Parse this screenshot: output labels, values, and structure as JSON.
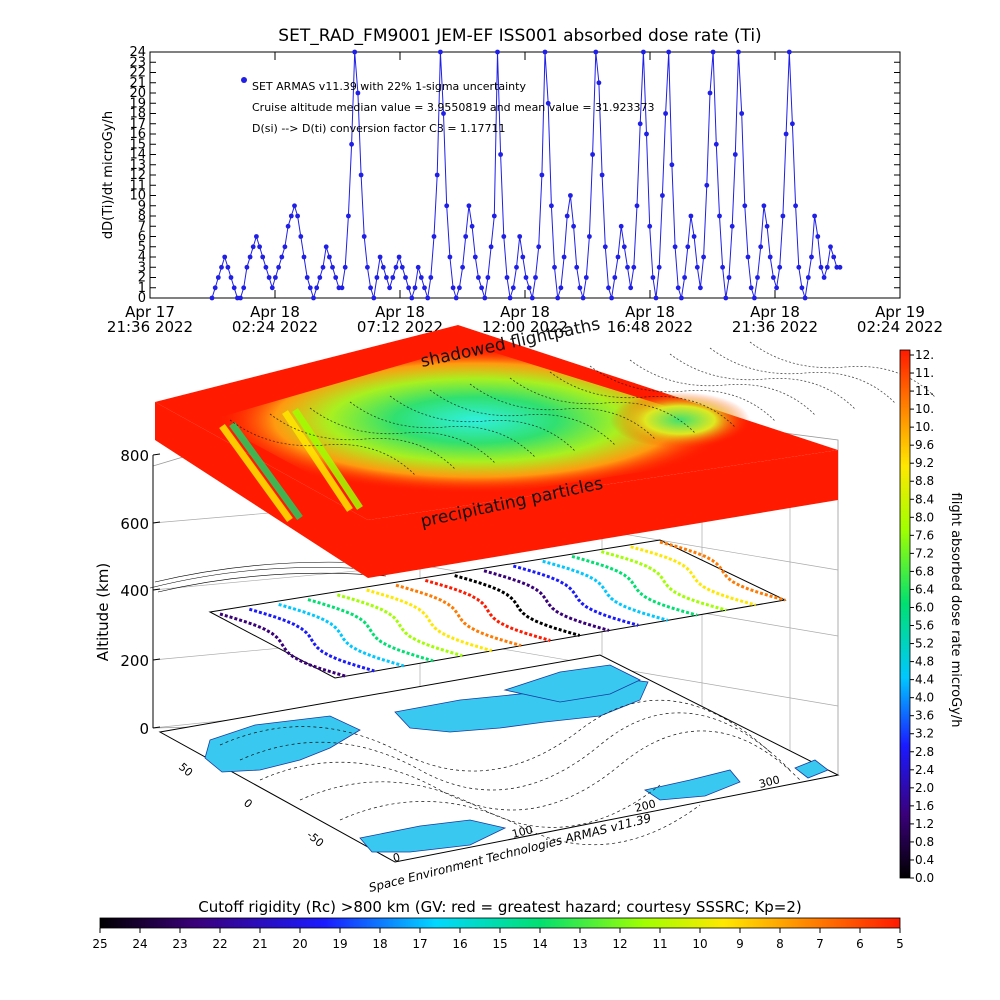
{
  "chart_data": [
    {
      "type": "line",
      "title": "SET_RAD_FM9001  JEM-EF ISS001 absorbed dose rate (Ti)",
      "ylabel": "dD(Ti)/dt microGy/h",
      "ylim": [
        0,
        24
      ],
      "y_ticks": [
        "0",
        "1",
        "2",
        "3",
        "4",
        "5",
        "6",
        "7",
        "8",
        "9",
        "10",
        "11",
        "12",
        "13",
        "14",
        "15",
        "16",
        "17",
        "18",
        "19",
        "20",
        "21",
        "22",
        "23",
        "24"
      ],
      "x_ticks": [
        {
          "date": "Apr 17",
          "time": "21:36 2022"
        },
        {
          "date": "Apr 18",
          "time": "02:24 2022"
        },
        {
          "date": "Apr 18",
          "time": "07:12 2022"
        },
        {
          "date": "Apr 18",
          "time": "12:00 2022"
        },
        {
          "date": "Apr 18",
          "time": "16:48 2022"
        },
        {
          "date": "Apr 18",
          "time": "21:36 2022"
        },
        {
          "date": "Apr 19",
          "time": "02:24 2022"
        }
      ],
      "annotations": [
        "SET ARMAS v11.39 with 22% 1-sigma uncertainty",
        "Cruise altitude median value = 3.9550819 and mean value = 31.923373",
        "D(si) --> D(ti) conversion factor C3 =  1.17711"
      ],
      "series_color": "#1f1fe6",
      "series": [
        {
          "values": [
            0,
            1,
            2,
            3,
            4,
            3,
            2,
            1,
            0,
            0,
            1,
            3,
            4,
            5,
            6,
            5,
            4,
            3,
            2,
            1,
            2,
            3,
            4,
            5,
            7,
            8,
            9,
            8,
            6,
            4,
            2,
            1,
            0,
            1,
            2,
            3,
            5,
            4,
            3,
            2,
            1,
            1,
            3,
            8,
            15,
            24,
            20,
            12,
            6,
            3,
            1,
            0,
            2,
            4,
            3,
            2,
            1,
            2,
            3,
            4,
            3,
            2,
            1,
            0,
            1,
            3,
            2,
            1,
            0,
            2,
            6,
            12,
            24,
            18,
            9,
            4,
            1,
            0,
            1,
            3,
            6,
            9,
            7,
            4,
            2,
            1,
            0,
            2,
            5,
            8,
            24,
            14,
            6,
            2,
            0,
            1,
            3,
            6,
            4,
            2,
            1,
            0,
            2,
            5,
            12,
            24,
            19,
            9,
            3,
            0,
            1,
            4,
            8,
            10,
            7,
            3,
            1,
            0,
            2,
            6,
            14,
            24,
            21,
            12,
            5,
            1,
            0,
            2,
            4,
            7,
            5,
            3,
            1,
            3,
            9,
            17,
            24,
            16,
            7,
            2,
            0,
            3,
            10,
            18,
            24,
            13,
            5,
            1,
            0,
            2,
            5,
            8,
            6,
            3,
            1,
            4,
            11,
            20,
            24,
            15,
            8,
            3,
            0,
            2,
            7,
            14,
            24,
            18,
            9,
            4,
            1,
            0,
            2,
            5,
            9,
            7,
            4,
            2,
            1,
            3,
            8,
            16,
            24,
            17,
            9,
            3,
            1,
            0,
            2,
            4,
            8,
            6,
            3,
            2,
            3,
            5,
            4,
            3,
            3
          ]
        }
      ]
    },
    {
      "type": "heatmap",
      "projection": "3d-stacked",
      "zlabel": "Altitude (km)",
      "z_ticks": [
        "0",
        "200",
        "400",
        "600",
        "800"
      ],
      "lat_ticks": [
        "50",
        "0",
        "-50"
      ],
      "lon_ticks": [
        "0",
        "100",
        "200",
        "300"
      ],
      "layer_labels": [
        "shadowed flightpaths",
        "precipitating particles"
      ],
      "credit": "Space Environment Technologies ARMAS v11.39"
    }
  ],
  "colorbar_right": {
    "label": "flight absorbed dose rate microGy/h",
    "ticks": [
      "12.",
      "11.",
      "11.",
      "10.",
      "10.",
      "9.6",
      "9.2",
      "8.8",
      "8.4",
      "8.0",
      "7.6",
      "7.2",
      "6.8",
      "6.4",
      "6.0",
      "5.6",
      "5.2",
      "4.8",
      "4.4",
      "4.0",
      "3.6",
      "3.2",
      "2.8",
      "2.4",
      "2.0",
      "1.6",
      "1.2",
      "0.8",
      "0.4",
      "0.0"
    ]
  },
  "colorbar_bottom": {
    "title": "Cutoff rigidity (Rc) >800 km (GV: red = greatest hazard; courtesy SSSRC; Kp=2)",
    "ticks": [
      "25",
      "24",
      "23",
      "22",
      "21",
      "20",
      "19",
      "18",
      "17",
      "16",
      "15",
      "14",
      "13",
      "12",
      "11",
      "10",
      "9",
      "8",
      "7",
      "6",
      "5"
    ]
  },
  "colors": {
    "series": "#1f1fe6",
    "hazard_red": "#ff1a00",
    "map_land": "#38c8f0",
    "background": "#ffffff"
  }
}
